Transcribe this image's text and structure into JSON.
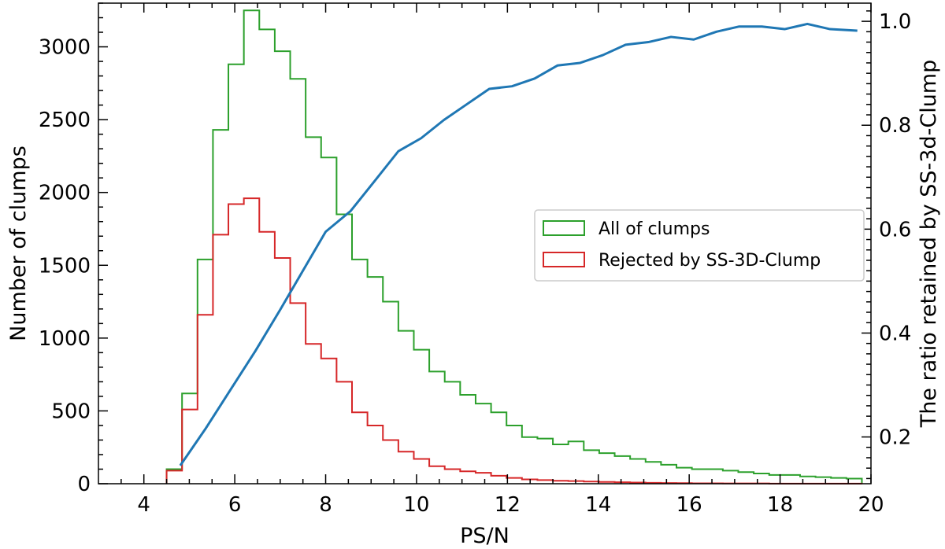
{
  "chart_data": {
    "type": "histogram-line",
    "xlabel": "PS/N",
    "ylabel_left": "Number of clumps",
    "ylabel_right": "The ratio retained by SS-3d-Clump",
    "xlim": [
      3,
      20
    ],
    "ylim_left": [
      0,
      3300
    ],
    "ylim_right": [
      0.11,
      1.035
    ],
    "x_ticks": [
      4,
      6,
      8,
      10,
      12,
      14,
      16,
      18,
      20
    ],
    "y_ticks_left": [
      0,
      500,
      1000,
      1500,
      2000,
      2500,
      3000
    ],
    "y_ticks_right": [
      0.2,
      0.4,
      0.6,
      0.8,
      1.0
    ],
    "x_tick_labels": [
      "4",
      "6",
      "8",
      "10",
      "12",
      "14",
      "16",
      "18",
      "20"
    ],
    "y_tick_labels_left": [
      "0",
      "500",
      "1000",
      "1500",
      "2000",
      "2500",
      "3000"
    ],
    "y_tick_labels_right": [
      "0.2",
      "0.4",
      "0.6",
      "0.8",
      "1.0"
    ],
    "bin_edges": [
      4.5,
      4.84,
      5.18,
      5.52,
      5.86,
      6.2,
      6.54,
      6.88,
      7.22,
      7.56,
      7.9,
      8.24,
      8.58,
      8.92,
      9.26,
      9.6,
      9.94,
      10.28,
      10.62,
      10.96,
      11.3,
      11.64,
      11.98,
      12.32,
      12.66,
      13.0,
      13.34,
      13.68,
      14.02,
      14.36,
      14.7,
      15.04,
      15.38,
      15.72,
      16.06,
      16.4,
      16.74,
      17.08,
      17.42,
      17.76,
      18.1,
      18.44,
      18.78,
      19.12,
      19.46,
      19.8
    ],
    "series": [
      {
        "name": "All of clumps",
        "type": "step",
        "color": "#2ca02c",
        "values": [
          100,
          620,
          1540,
          2430,
          2880,
          3250,
          3120,
          2970,
          2780,
          2380,
          2240,
          1850,
          1540,
          1420,
          1250,
          1050,
          920,
          770,
          700,
          610,
          550,
          490,
          400,
          320,
          310,
          270,
          290,
          230,
          210,
          190,
          170,
          150,
          130,
          110,
          100,
          100,
          90,
          80,
          70,
          60,
          60,
          50,
          45,
          40,
          35
        ]
      },
      {
        "name": "Rejected by SS-3D-Clump",
        "type": "step",
        "color": "#d62728",
        "values": [
          90,
          510,
          1160,
          1710,
          1920,
          1960,
          1730,
          1550,
          1240,
          960,
          860,
          700,
          490,
          400,
          300,
          220,
          170,
          120,
          100,
          85,
          75,
          55,
          40,
          30,
          25,
          20,
          18,
          15,
          12,
          10,
          8,
          6,
          5,
          4,
          3,
          3,
          2,
          2,
          2,
          1,
          1,
          1,
          1,
          1,
          1
        ]
      },
      {
        "name": "ratio",
        "type": "line",
        "axis": "right",
        "color": "#1f77b4",
        "x": [
          4.8,
          5.35,
          5.9,
          6.45,
          7.0,
          7.5,
          8.0,
          8.55,
          9.1,
          9.6,
          10.1,
          10.6,
          11.1,
          11.6,
          12.1,
          12.6,
          13.1,
          13.6,
          14.1,
          14.6,
          15.1,
          15.6,
          16.1,
          16.6,
          17.1,
          17.6,
          18.1,
          18.6,
          19.1,
          19.7
        ],
        "y": [
          0.145,
          0.215,
          0.29,
          0.365,
          0.445,
          0.52,
          0.595,
          0.635,
          0.695,
          0.75,
          0.775,
          0.81,
          0.84,
          0.87,
          0.875,
          0.89,
          0.915,
          0.92,
          0.935,
          0.955,
          0.96,
          0.97,
          0.965,
          0.98,
          0.99,
          0.99,
          0.985,
          0.995,
          0.985,
          0.982
        ]
      }
    ],
    "legend": {
      "placement": "center-right",
      "entries": [
        "All of clumps",
        "Rejected by SS-3D-Clump"
      ]
    }
  }
}
